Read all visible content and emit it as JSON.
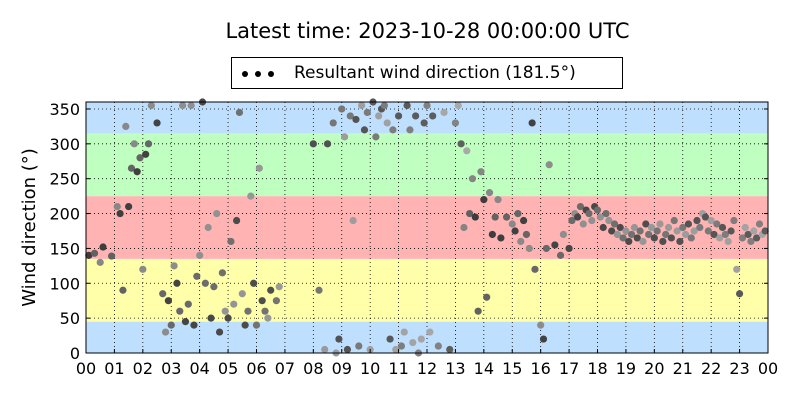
{
  "title": "Latest time: 2023-10-28 00:00:00 UTC",
  "legend": {
    "label": "Resultant wind direction (181.5°)",
    "placement": "top-center"
  },
  "colors": {
    "north_band": "#bfdfff",
    "west_band": "#bfffbf",
    "south_band": "#ffb3b3",
    "east_band": "#ffffaa",
    "points": "#555555"
  },
  "chart_data": {
    "type": "scatter",
    "title": "Latest time: 2023-10-28 00:00:00 UTC",
    "xlabel": "",
    "ylabel": "Wind direction (°)",
    "xlim": [
      0,
      24
    ],
    "ylim": [
      0,
      360
    ],
    "grid": true,
    "x_ticks": [
      "00",
      "01",
      "02",
      "03",
      "04",
      "05",
      "06",
      "07",
      "08",
      "09",
      "10",
      "11",
      "12",
      "13",
      "14",
      "15",
      "16",
      "17",
      "18",
      "19",
      "20",
      "21",
      "22",
      "23",
      "00"
    ],
    "y_ticks": [
      0,
      50,
      100,
      150,
      200,
      250,
      300,
      350
    ],
    "bands": [
      {
        "from": 0,
        "to": 45,
        "color": "#bfdfff"
      },
      {
        "from": 45,
        "to": 135,
        "color": "#ffffaa"
      },
      {
        "from": 135,
        "to": 225,
        "color": "#ffb3b3"
      },
      {
        "from": 225,
        "to": 315,
        "color": "#bfffbf"
      },
      {
        "from": 315,
        "to": 360,
        "color": "#bfdfff"
      }
    ],
    "series": [
      {
        "name": "Resultant wind direction (181.5°)",
        "points": [
          [
            0.1,
            140
          ],
          [
            0.3,
            143
          ],
          [
            0.5,
            130
          ],
          [
            0.6,
            152
          ],
          [
            0.9,
            139
          ],
          [
            1.1,
            210
          ],
          [
            1.2,
            200
          ],
          [
            1.3,
            90
          ],
          [
            1.4,
            325
          ],
          [
            1.5,
            210
          ],
          [
            1.6,
            265
          ],
          [
            1.7,
            300
          ],
          [
            1.8,
            260
          ],
          [
            1.9,
            280
          ],
          [
            2.0,
            120
          ],
          [
            2.1,
            285
          ],
          [
            2.2,
            300
          ],
          [
            2.3,
            355
          ],
          [
            2.5,
            330
          ],
          [
            2.7,
            85
          ],
          [
            2.8,
            30
          ],
          [
            2.9,
            75
          ],
          [
            3.0,
            40
          ],
          [
            3.1,
            125
          ],
          [
            3.2,
            100
          ],
          [
            3.3,
            60
          ],
          [
            3.4,
            355
          ],
          [
            3.5,
            45
          ],
          [
            3.6,
            70
          ],
          [
            3.7,
            355
          ],
          [
            3.8,
            40
          ],
          [
            3.9,
            110
          ],
          [
            4.0,
            140
          ],
          [
            4.1,
            360
          ],
          [
            4.2,
            100
          ],
          [
            4.3,
            180
          ],
          [
            4.4,
            50
          ],
          [
            4.5,
            95
          ],
          [
            4.6,
            200
          ],
          [
            4.7,
            30
          ],
          [
            4.8,
            115
          ],
          [
            4.9,
            60
          ],
          [
            5.0,
            50
          ],
          [
            5.1,
            160
          ],
          [
            5.2,
            70
          ],
          [
            5.3,
            190
          ],
          [
            5.4,
            345
          ],
          [
            5.5,
            85
          ],
          [
            5.6,
            40
          ],
          [
            5.7,
            60
          ],
          [
            5.8,
            225
          ],
          [
            5.9,
            100
          ],
          [
            6.0,
            40
          ],
          [
            6.1,
            265
          ],
          [
            6.2,
            75
          ],
          [
            6.3,
            60
          ],
          [
            6.4,
            50
          ],
          [
            6.5,
            90
          ],
          [
            6.7,
            75
          ],
          [
            6.8,
            95
          ],
          [
            8.0,
            300
          ],
          [
            8.2,
            90
          ],
          [
            8.4,
            5
          ],
          [
            8.5,
            300
          ],
          [
            8.7,
            330
          ],
          [
            8.8,
            0
          ],
          [
            8.9,
            20
          ],
          [
            9.0,
            350
          ],
          [
            9.1,
            310
          ],
          [
            9.2,
            5
          ],
          [
            9.3,
            340
          ],
          [
            9.4,
            190
          ],
          [
            9.5,
            335
          ],
          [
            9.6,
            10
          ],
          [
            9.7,
            355
          ],
          [
            9.8,
            320
          ],
          [
            9.9,
            345
          ],
          [
            10.0,
            5
          ],
          [
            10.1,
            360
          ],
          [
            10.2,
            310
          ],
          [
            10.3,
            340
          ],
          [
            10.4,
            350
          ],
          [
            10.5,
            355
          ],
          [
            10.6,
            330
          ],
          [
            10.7,
            20
          ],
          [
            10.8,
            320
          ],
          [
            10.9,
            5
          ],
          [
            11.0,
            340
          ],
          [
            11.1,
            10
          ],
          [
            11.2,
            30
          ],
          [
            11.3,
            355
          ],
          [
            11.4,
            320
          ],
          [
            11.5,
            15
          ],
          [
            11.6,
            340
          ],
          [
            11.7,
            0
          ],
          [
            11.8,
            20
          ],
          [
            11.9,
            330
          ],
          [
            12.0,
            355
          ],
          [
            12.1,
            30
          ],
          [
            12.2,
            340
          ],
          [
            12.4,
            10
          ],
          [
            12.6,
            345
          ],
          [
            12.8,
            5
          ],
          [
            13.0,
            330
          ],
          [
            13.1,
            355
          ],
          [
            13.2,
            300
          ],
          [
            13.3,
            180
          ],
          [
            13.4,
            290
          ],
          [
            13.5,
            200
          ],
          [
            13.6,
            250
          ],
          [
            13.7,
            195
          ],
          [
            13.8,
            60
          ],
          [
            13.9,
            260
          ],
          [
            14.0,
            220
          ],
          [
            14.1,
            80
          ],
          [
            14.2,
            230
          ],
          [
            14.3,
            170
          ],
          [
            14.4,
            195
          ],
          [
            14.5,
            220
          ],
          [
            14.6,
            165
          ],
          [
            14.8,
            195
          ],
          [
            15.0,
            185
          ],
          [
            15.1,
            175
          ],
          [
            15.2,
            200
          ],
          [
            15.3,
            160
          ],
          [
            15.4,
            190
          ],
          [
            15.5,
            170
          ],
          [
            15.6,
            150
          ],
          [
            15.7,
            330
          ],
          [
            15.8,
            120
          ],
          [
            16.0,
            40
          ],
          [
            16.1,
            20
          ],
          [
            16.2,
            150
          ],
          [
            16.3,
            270
          ],
          [
            16.5,
            155
          ],
          [
            16.7,
            140
          ],
          [
            16.8,
            170
          ],
          [
            17.0,
            150
          ],
          [
            17.1,
            190
          ],
          [
            17.2,
            200
          ],
          [
            17.3,
            195
          ],
          [
            17.4,
            210
          ],
          [
            17.5,
            185
          ],
          [
            17.6,
            205
          ],
          [
            17.7,
            200
          ],
          [
            17.8,
            190
          ],
          [
            17.9,
            210
          ],
          [
            18.0,
            205
          ],
          [
            18.1,
            195
          ],
          [
            18.2,
            180
          ],
          [
            18.3,
            200
          ],
          [
            18.4,
            190
          ],
          [
            18.5,
            175
          ],
          [
            18.6,
            185
          ],
          [
            18.7,
            170
          ],
          [
            18.8,
            180
          ],
          [
            18.9,
            165
          ],
          [
            19.0,
            175
          ],
          [
            19.1,
            160
          ],
          [
            19.2,
            170
          ],
          [
            19.3,
            180
          ],
          [
            19.4,
            165
          ],
          [
            19.5,
            175
          ],
          [
            19.6,
            160
          ],
          [
            19.7,
            185
          ],
          [
            19.8,
            170
          ],
          [
            19.9,
            180
          ],
          [
            20.0,
            165
          ],
          [
            20.1,
            175
          ],
          [
            20.2,
            185
          ],
          [
            20.3,
            160
          ],
          [
            20.4,
            170
          ],
          [
            20.5,
            180
          ],
          [
            20.6,
            165
          ],
          [
            20.7,
            190
          ],
          [
            20.8,
            175
          ],
          [
            20.9,
            160
          ],
          [
            21.0,
            180
          ],
          [
            21.1,
            170
          ],
          [
            21.2,
            185
          ],
          [
            21.3,
            165
          ],
          [
            21.4,
            175
          ],
          [
            21.5,
            190
          ],
          [
            21.6,
            180
          ],
          [
            21.7,
            200
          ],
          [
            21.8,
            195
          ],
          [
            21.9,
            175
          ],
          [
            22.0,
            190
          ],
          [
            22.1,
            170
          ],
          [
            22.2,
            185
          ],
          [
            22.3,
            165
          ],
          [
            22.4,
            180
          ],
          [
            22.5,
            170
          ],
          [
            22.6,
            160
          ],
          [
            22.7,
            175
          ],
          [
            22.8,
            190
          ],
          [
            22.9,
            120
          ],
          [
            23.0,
            85
          ],
          [
            23.1,
            165
          ],
          [
            23.2,
            180
          ],
          [
            23.3,
            170
          ],
          [
            23.4,
            160
          ],
          [
            23.5,
            175
          ],
          [
            23.6,
            165
          ],
          [
            23.7,
            185
          ],
          [
            23.8,
            170
          ],
          [
            23.9,
            175
          ]
        ]
      }
    ]
  }
}
